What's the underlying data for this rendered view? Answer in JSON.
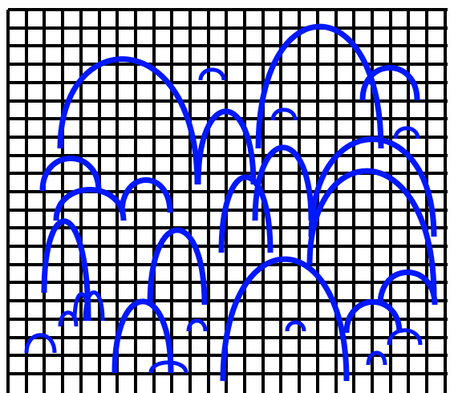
{
  "puzzle": {
    "grid_color": "#000000",
    "arc_color": "#0018ff",
    "background_color": "#ffffff",
    "grid_columns": 24,
    "grid_rows": 21,
    "arc_count": 27
  }
}
